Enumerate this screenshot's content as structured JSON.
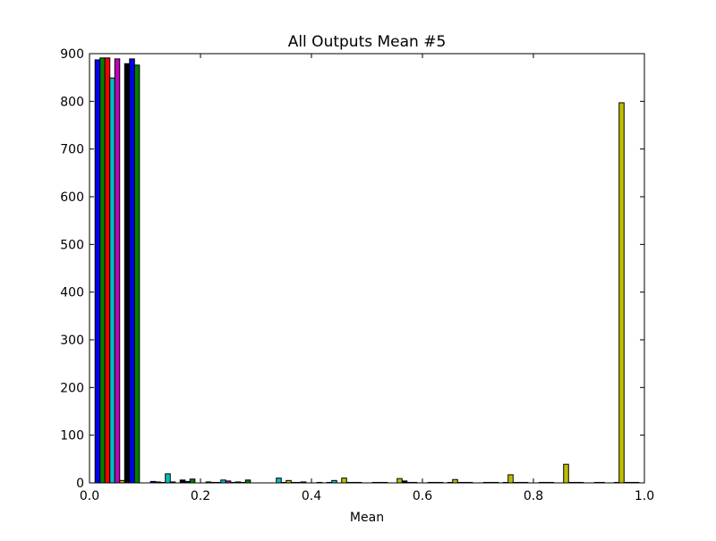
{
  "chart_data": {
    "type": "bar",
    "title": "All Outputs Mean #5",
    "xlabel": "Mean",
    "ylabel": "",
    "xlim": [
      0.0,
      1.0
    ],
    "ylim": [
      0,
      900
    ],
    "grid": false,
    "legend": "none",
    "bin_width": 0.1,
    "bin_starts": [
      0.0,
      0.1,
      0.2,
      0.3,
      0.4,
      0.5,
      0.6,
      0.7,
      0.8,
      0.9
    ],
    "x_ticks": [
      "0.0",
      "0.2",
      "0.4",
      "0.6",
      "0.8",
      "1.0"
    ],
    "x_tick_values": [
      0.0,
      0.2,
      0.4,
      0.6,
      0.8,
      1.0
    ],
    "y_ticks": [
      "0",
      "100",
      "200",
      "300",
      "400",
      "500",
      "600",
      "700",
      "800",
      "900"
    ],
    "y_tick_values": [
      0,
      100,
      200,
      300,
      400,
      500,
      600,
      700,
      800,
      900
    ],
    "series": [
      {
        "color": "#0000ff",
        "values": [
          887,
          3,
          2,
          0,
          1,
          1,
          1,
          1,
          1,
          1
        ]
      },
      {
        "color": "#008000",
        "values": [
          891,
          2,
          1,
          0,
          0,
          1,
          1,
          1,
          1,
          1
        ]
      },
      {
        "color": "#ff0000",
        "values": [
          891,
          1,
          1,
          0,
          1,
          1,
          1,
          1,
          1,
          0
        ]
      },
      {
        "color": "#00bfbf",
        "values": [
          849,
          19,
          6,
          10,
          5,
          0,
          0,
          0,
          0,
          0
        ]
      },
      {
        "color": "#bf00bf",
        "values": [
          889,
          2,
          4,
          1,
          0,
          0,
          1,
          1,
          0,
          1
        ]
      },
      {
        "color": "#bfbf00",
        "values": [
          5,
          0,
          1,
          5,
          10,
          9,
          7,
          17,
          39,
          797
        ]
      },
      {
        "color": "#000000",
        "values": [
          879,
          6,
          2,
          1,
          1,
          4,
          1,
          1,
          1,
          1
        ]
      },
      {
        "color": "#0000ff",
        "values": [
          889,
          3,
          1,
          1,
          1,
          1,
          1,
          1,
          1,
          1
        ]
      },
      {
        "color": "#008000",
        "values": [
          876,
          8,
          6,
          2,
          1,
          1,
          1,
          1,
          1,
          1
        ]
      }
    ]
  }
}
